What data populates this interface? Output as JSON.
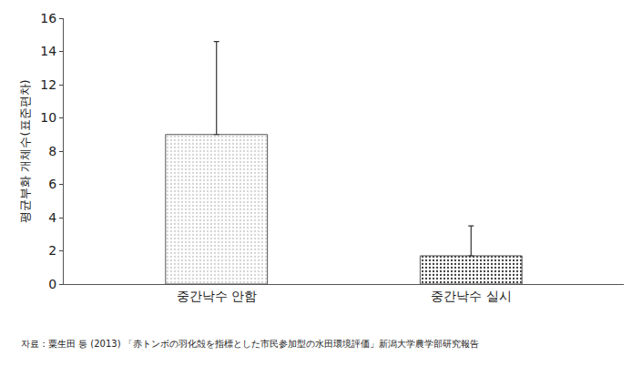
{
  "chart_data": {
    "type": "bar",
    "categories": [
      "중간낙수 안함",
      "중간낙수 실시"
    ],
    "values": [
      9.0,
      1.7
    ],
    "error": [
      5.6,
      1.8
    ],
    "colors": [
      "#d4d4d4",
      "#3a3a3a"
    ],
    "ylabel": "평균부화 개체수(표준편차)",
    "ylim": [
      0,
      16
    ],
    "yticks": [
      0,
      2,
      4,
      6,
      8,
      10,
      12,
      14,
      16
    ],
    "grid": false,
    "note": "자료：粟生田 등 (2013) 「赤トンボの羽化殻を指標とした市民参加型の水田環境評価」新潟大学農学部研究報告"
  }
}
